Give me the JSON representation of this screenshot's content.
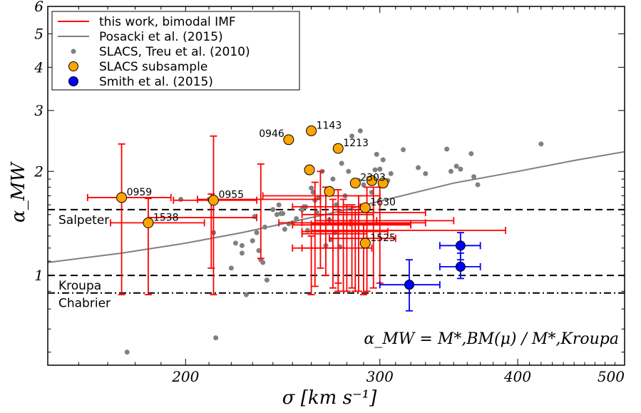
{
  "chart_data": {
    "type": "scatter",
    "xlabel": "σ [km s⁻¹]",
    "ylabel": "α_MW",
    "x_scale": "log",
    "y_scale": "log",
    "xlim": [
      150,
      500
    ],
    "ylim": [
      0.55,
      6
    ],
    "x_ticks": [
      200,
      300,
      400,
      500
    ],
    "y_ticks": [
      1,
      2,
      3,
      4,
      5,
      6
    ],
    "grid": false,
    "legend_placement": "top-left",
    "formula_annotation": "α_MW = M*,BM(μ) / M*,Kroupa",
    "legend": [
      {
        "label": "this work, bimodal IMF",
        "marker": "line",
        "color": "#ff0000"
      },
      {
        "label": "Posacki et al. (2015)",
        "marker": "line",
        "color": "#808080"
      },
      {
        "label": "SLACS, Treu et al. (2010)",
        "marker": "small-dot",
        "color": "#808080"
      },
      {
        "label": "SLACS subsample",
        "marker": "circle",
        "color": "#ffa500"
      },
      {
        "label": "Smith et al. (2015)",
        "marker": "circle",
        "color": "#0000ff"
      }
    ],
    "reference_lines": [
      {
        "label": "Salpeter",
        "y": 1.55,
        "style": "dashed"
      },
      {
        "label": "Kroupa",
        "y": 1.0,
        "style": "dashed"
      },
      {
        "label": "Chabrier",
        "y": 0.89,
        "style": "dashdot"
      }
    ],
    "series": [
      {
        "name": "this work, bimodal IMF",
        "color": "#ff0000",
        "points": [
          {
            "x": 211,
            "y": 1.47,
            "xmin": 185,
            "xmax": 232,
            "ymin": 1.05,
            "ymax": 1.72
          },
          {
            "x": 234,
            "y": 1.66,
            "xmin": 205,
            "xmax": 265,
            "ymin": 1.12,
            "ymax": 2.1
          },
          {
            "x": 262,
            "y": 1.42,
            "xmin": 243,
            "xmax": 282,
            "ymin": 0.93,
            "ymax": 1.86
          },
          {
            "x": 265,
            "y": 1.7,
            "xmin": 235,
            "xmax": 300,
            "ymin": 1.05,
            "ymax": 2.0
          },
          {
            "x": 268,
            "y": 1.58,
            "xmin": 250,
            "xmax": 288,
            "ymin": 1.0,
            "ymax": 1.8
          },
          {
            "x": 272,
            "y": 1.32,
            "xmin": 255,
            "xmax": 292,
            "ymin": 0.92,
            "ymax": 1.66
          },
          {
            "x": 275,
            "y": 1.5,
            "xmin": 255,
            "xmax": 296,
            "ymin": 0.95,
            "ymax": 1.77
          },
          {
            "x": 278,
            "y": 1.44,
            "xmin": 262,
            "xmax": 298,
            "ymin": 0.9,
            "ymax": 1.66
          },
          {
            "x": 280,
            "y": 1.4,
            "xmin": 250,
            "xmax": 320,
            "ymin": 0.9,
            "ymax": 1.6
          },
          {
            "x": 283,
            "y": 1.41,
            "xmin": 260,
            "xmax": 320,
            "ymin": 0.92,
            "ymax": 1.6
          },
          {
            "x": 287,
            "y": 1.42,
            "xmin": 255,
            "xmax": 330,
            "ymin": 0.9,
            "ymax": 1.7
          },
          {
            "x": 292,
            "y": 1.44,
            "xmin": 270,
            "xmax": 350,
            "ymin": 0.9,
            "ymax": 1.8
          },
          {
            "x": 296,
            "y": 1.35,
            "xmin": 260,
            "xmax": 390,
            "ymin": 0.92,
            "ymax": 1.8
          },
          {
            "x": 300,
            "y": 1.52,
            "xmin": 275,
            "xmax": 330,
            "ymin": 0.95,
            "ymax": 1.8
          },
          {
            "x": 285,
            "y": 1.34,
            "xmin": 255,
            "xmax": 305,
            "ymin": 0.9,
            "ymax": 1.55
          },
          {
            "x": 275,
            "y": 1.2,
            "xmin": 255,
            "xmax": 295,
            "ymin": 0.9,
            "ymax": 1.55
          },
          {
            "x": 290,
            "y": 1.28,
            "xmin": 270,
            "xmax": 310,
            "ymin": 0.88,
            "ymax": 1.4
          },
          {
            "x": 260,
            "y": 1.2,
            "xmin": 250,
            "xmax": 272,
            "ymin": 0.88,
            "ymax": 1.3
          }
        ]
      },
      {
        "name": "Posacki et al. (2015)",
        "color": "#808080",
        "curve": [
          {
            "x": 150,
            "y": 1.09
          },
          {
            "x": 175,
            "y": 1.16
          },
          {
            "x": 200,
            "y": 1.24
          },
          {
            "x": 225,
            "y": 1.33
          },
          {
            "x": 250,
            "y": 1.43
          },
          {
            "x": 275,
            "y": 1.53
          },
          {
            "x": 300,
            "y": 1.64
          },
          {
            "x": 350,
            "y": 1.85
          },
          {
            "x": 400,
            "y": 2.0
          },
          {
            "x": 450,
            "y": 2.15
          },
          {
            "x": 500,
            "y": 2.28
          }
        ]
      },
      {
        "name": "SLACS, Treu et al. (2010)",
        "color": "#808080",
        "points": [
          {
            "x": 177,
            "y": 0.6
          },
          {
            "x": 198,
            "y": 1.66
          },
          {
            "x": 210,
            "y": 1.66
          },
          {
            "x": 212,
            "y": 1.33
          },
          {
            "x": 213,
            "y": 0.66
          },
          {
            "x": 220,
            "y": 1.05
          },
          {
            "x": 222,
            "y": 1.24
          },
          {
            "x": 225,
            "y": 1.22
          },
          {
            "x": 225,
            "y": 1.16
          },
          {
            "x": 227,
            "y": 0.88
          },
          {
            "x": 230,
            "y": 1.26
          },
          {
            "x": 231,
            "y": 1.48
          },
          {
            "x": 232,
            "y": 1.33
          },
          {
            "x": 233,
            "y": 1.18
          },
          {
            "x": 234,
            "y": 1.11
          },
          {
            "x": 235,
            "y": 1.09
          },
          {
            "x": 236,
            "y": 1.38
          },
          {
            "x": 237,
            "y": 0.97
          },
          {
            "x": 240,
            "y": 1.55
          },
          {
            "x": 242,
            "y": 1.5
          },
          {
            "x": 243,
            "y": 1.6
          },
          {
            "x": 244,
            "y": 1.51
          },
          {
            "x": 245,
            "y": 1.51
          },
          {
            "x": 246,
            "y": 1.36
          },
          {
            "x": 248,
            "y": 1.41
          },
          {
            "x": 250,
            "y": 1.42
          },
          {
            "x": 252,
            "y": 1.46
          },
          {
            "x": 255,
            "y": 1.55
          },
          {
            "x": 256,
            "y": 1.58
          },
          {
            "x": 257,
            "y": 1.58
          },
          {
            "x": 258,
            "y": 1.35
          },
          {
            "x": 260,
            "y": 1.79
          },
          {
            "x": 261,
            "y": 1.74
          },
          {
            "x": 262,
            "y": 1.65
          },
          {
            "x": 263,
            "y": 1.52
          },
          {
            "x": 264,
            "y": 1.68
          },
          {
            "x": 266,
            "y": 2.0
          },
          {
            "x": 268,
            "y": 1.22
          },
          {
            "x": 270,
            "y": 1.45
          },
          {
            "x": 271,
            "y": 1.27
          },
          {
            "x": 272,
            "y": 1.9
          },
          {
            "x": 273,
            "y": 1.33
          },
          {
            "x": 274,
            "y": 1.6
          },
          {
            "x": 276,
            "y": 1.21
          },
          {
            "x": 277,
            "y": 2.11
          },
          {
            "x": 279,
            "y": 1.7
          },
          {
            "x": 281,
            "y": 2.0
          },
          {
            "x": 283,
            "y": 2.53
          },
          {
            "x": 285,
            "y": 1.86
          },
          {
            "x": 287,
            "y": 1.88
          },
          {
            "x": 288,
            "y": 2.62
          },
          {
            "x": 290,
            "y": 1.83
          },
          {
            "x": 293,
            "y": 1.91
          },
          {
            "x": 295,
            "y": 1.74
          },
          {
            "x": 297,
            "y": 2.02
          },
          {
            "x": 298,
            "y": 2.24
          },
          {
            "x": 300,
            "y": 2.03
          },
          {
            "x": 301,
            "y": 1.82
          },
          {
            "x": 302,
            "y": 2.16
          },
          {
            "x": 305,
            "y": 1.88
          },
          {
            "x": 307,
            "y": 1.97
          },
          {
            "x": 315,
            "y": 2.31
          },
          {
            "x": 325,
            "y": 2.05
          },
          {
            "x": 330,
            "y": 1.97
          },
          {
            "x": 345,
            "y": 2.32
          },
          {
            "x": 348,
            "y": 2.0
          },
          {
            "x": 352,
            "y": 2.07
          },
          {
            "x": 355,
            "y": 2.03
          },
          {
            "x": 363,
            "y": 2.25
          },
          {
            "x": 365,
            "y": 1.93
          },
          {
            "x": 368,
            "y": 1.83
          },
          {
            "x": 420,
            "y": 2.4
          }
        ]
      },
      {
        "name": "SLACS subsample",
        "color": "#ffa500",
        "points": [
          {
            "x": 175,
            "y": 1.68,
            "label": "0959",
            "xmin": 163,
            "xmax": 194,
            "ymin": 0.88,
            "ymax": 2.4
          },
          {
            "x": 185,
            "y": 1.42,
            "label": "1538",
            "xmin": 171,
            "xmax": 208,
            "ymin": 0.88,
            "ymax": 1.67
          },
          {
            "x": 212,
            "y": 1.65,
            "label": "0955",
            "xmin": 195,
            "xmax": 232,
            "ymin": 0.88,
            "ymax": 2.53
          },
          {
            "x": 248,
            "y": 2.47,
            "label": "0946"
          },
          {
            "x": 260,
            "y": 2.62,
            "label": "1143"
          },
          {
            "x": 275,
            "y": 2.33,
            "label": "1213"
          },
          {
            "x": 259,
            "y": 2.02
          },
          {
            "x": 270,
            "y": 1.75
          },
          {
            "x": 285,
            "y": 1.85,
            "label": "2303"
          },
          {
            "x": 295,
            "y": 1.88
          },
          {
            "x": 302,
            "y": 1.85
          },
          {
            "x": 291,
            "y": 1.57,
            "label": "1630"
          },
          {
            "x": 291,
            "y": 1.24,
            "label": "1525"
          }
        ]
      },
      {
        "name": "Smith et al. (2015)",
        "color": "#0000ff",
        "points": [
          {
            "x": 319,
            "y": 0.94,
            "xmin": 300,
            "xmax": 340,
            "ymin": 0.79,
            "ymax": 1.11
          },
          {
            "x": 355,
            "y": 1.22,
            "xmin": 340,
            "xmax": 370,
            "ymin": 1.11,
            "ymax": 1.33
          },
          {
            "x": 355,
            "y": 1.06,
            "xmin": 340,
            "xmax": 370,
            "ymin": 0.98,
            "ymax": 1.16
          }
        ]
      }
    ]
  }
}
